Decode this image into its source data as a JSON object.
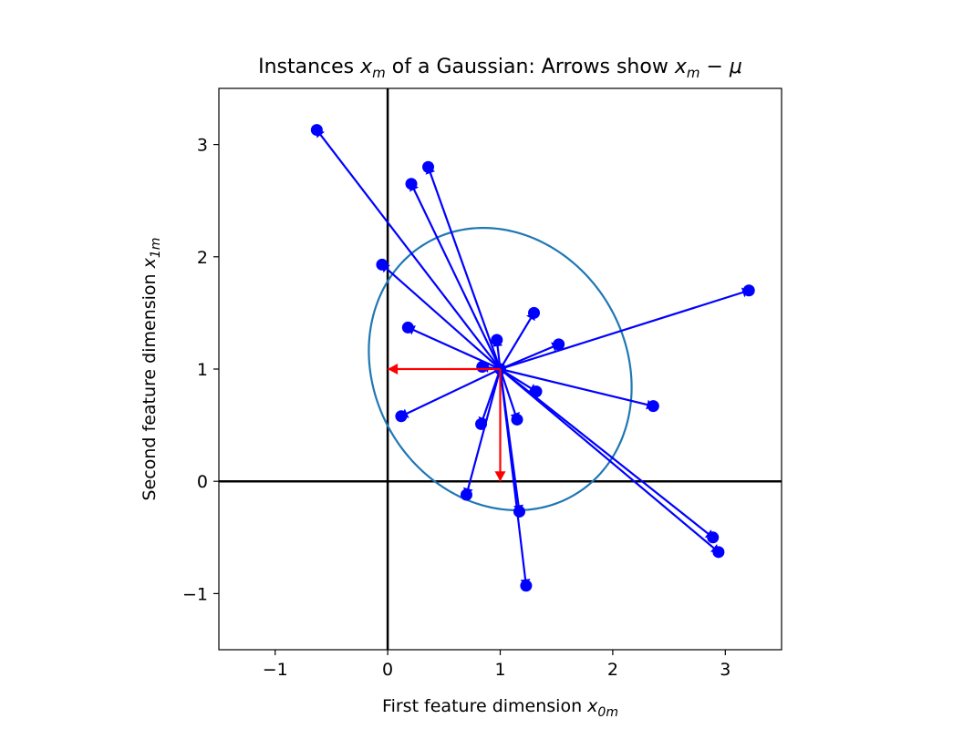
{
  "chart_data": {
    "type": "scatter",
    "title": {
      "prefix": "Instances ",
      "mid": " of a Gaussian: Arrows show ",
      "var": "x",
      "var_sub": "m",
      "minus": " − ",
      "mu": "μ"
    },
    "xlabel": {
      "text": "First feature dimension ",
      "var": "x",
      "sub": "0m"
    },
    "ylabel": {
      "text": "Second feature dimension ",
      "var": "x",
      "sub": "1m"
    },
    "xlim": [
      -1.5,
      3.5
    ],
    "ylim": [
      -1.5,
      3.5
    ],
    "xticks": [
      -1,
      0,
      1,
      2,
      3
    ],
    "yticks": [
      -1,
      0,
      1,
      2,
      3
    ],
    "xtick_labels": [
      "−1",
      "0",
      "1",
      "2",
      "3"
    ],
    "ytick_labels": [
      "−1",
      "0",
      "1",
      "2",
      "3"
    ],
    "mean": [
      1,
      1
    ],
    "points": [
      [
        -0.63,
        3.13
      ],
      [
        0.21,
        2.65
      ],
      [
        0.36,
        2.8
      ],
      [
        -0.05,
        1.93
      ],
      [
        0.18,
        1.37
      ],
      [
        0.97,
        1.26
      ],
      [
        1.3,
        1.5
      ],
      [
        1.52,
        1.22
      ],
      [
        3.21,
        1.7
      ],
      [
        0.84,
        1.02
      ],
      [
        2.36,
        0.67
      ],
      [
        1.32,
        0.8
      ],
      [
        0.12,
        0.58
      ],
      [
        0.83,
        0.51
      ],
      [
        1.15,
        0.55
      ],
      [
        0.7,
        -0.12
      ],
      [
        1.17,
        -0.27
      ],
      [
        1.23,
        -0.93
      ],
      [
        2.89,
        -0.5
      ],
      [
        2.94,
        -0.63
      ]
    ],
    "mean_arrows": [
      {
        "from": [
          1,
          1
        ],
        "to": [
          0,
          1
        ]
      },
      {
        "from": [
          1,
          1
        ],
        "to": [
          1,
          0
        ]
      }
    ],
    "ellipse": {
      "center": [
        1,
        1
      ],
      "semi_major": 1.3,
      "semi_minor": 1.12,
      "angle_deg": -60
    },
    "colors": {
      "points": "#0000ff",
      "arrows": "#0000ff",
      "mean_arrows": "#ff0000",
      "ellipse": "#1f77b4",
      "axis_lines": "#000000"
    },
    "grid": false
  }
}
